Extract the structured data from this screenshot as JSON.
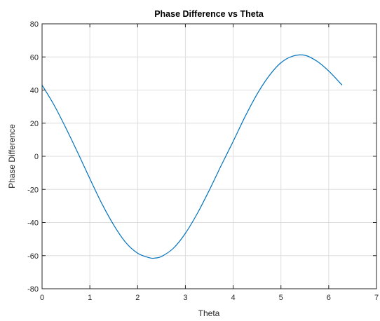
{
  "chart_data": {
    "type": "line",
    "title": "Phase Difference vs Theta",
    "xlabel": "Theta",
    "ylabel": "Phase Difference",
    "xlim": [
      0,
      7
    ],
    "ylim": [
      -80,
      80
    ],
    "xticks": [
      0,
      1,
      2,
      3,
      4,
      5,
      6,
      7
    ],
    "yticks": [
      -80,
      -60,
      -40,
      -20,
      0,
      20,
      40,
      60,
      80
    ],
    "grid": true,
    "series": [
      {
        "color": "#0072BD",
        "x": [
          0,
          0.25,
          0.5,
          0.75,
          1.0,
          1.25,
          1.5,
          1.75,
          2.0,
          2.25,
          2.35,
          2.5,
          2.75,
          3.0,
          3.25,
          3.5,
          3.75,
          4.0,
          4.25,
          4.5,
          4.75,
          5.0,
          5.25,
          5.5,
          5.75,
          6.0,
          6.28
        ],
        "y": [
          43.0,
          31.0,
          17.0,
          2.0,
          -13.5,
          -28.5,
          -41.5,
          -52.0,
          -58.5,
          -61.3,
          -61.5,
          -60.5,
          -55.5,
          -46.5,
          -34.5,
          -20.5,
          -5.5,
          9.0,
          24.0,
          37.5,
          48.5,
          56.5,
          60.5,
          61.0,
          57.5,
          51.5,
          43.0
        ]
      }
    ]
  }
}
